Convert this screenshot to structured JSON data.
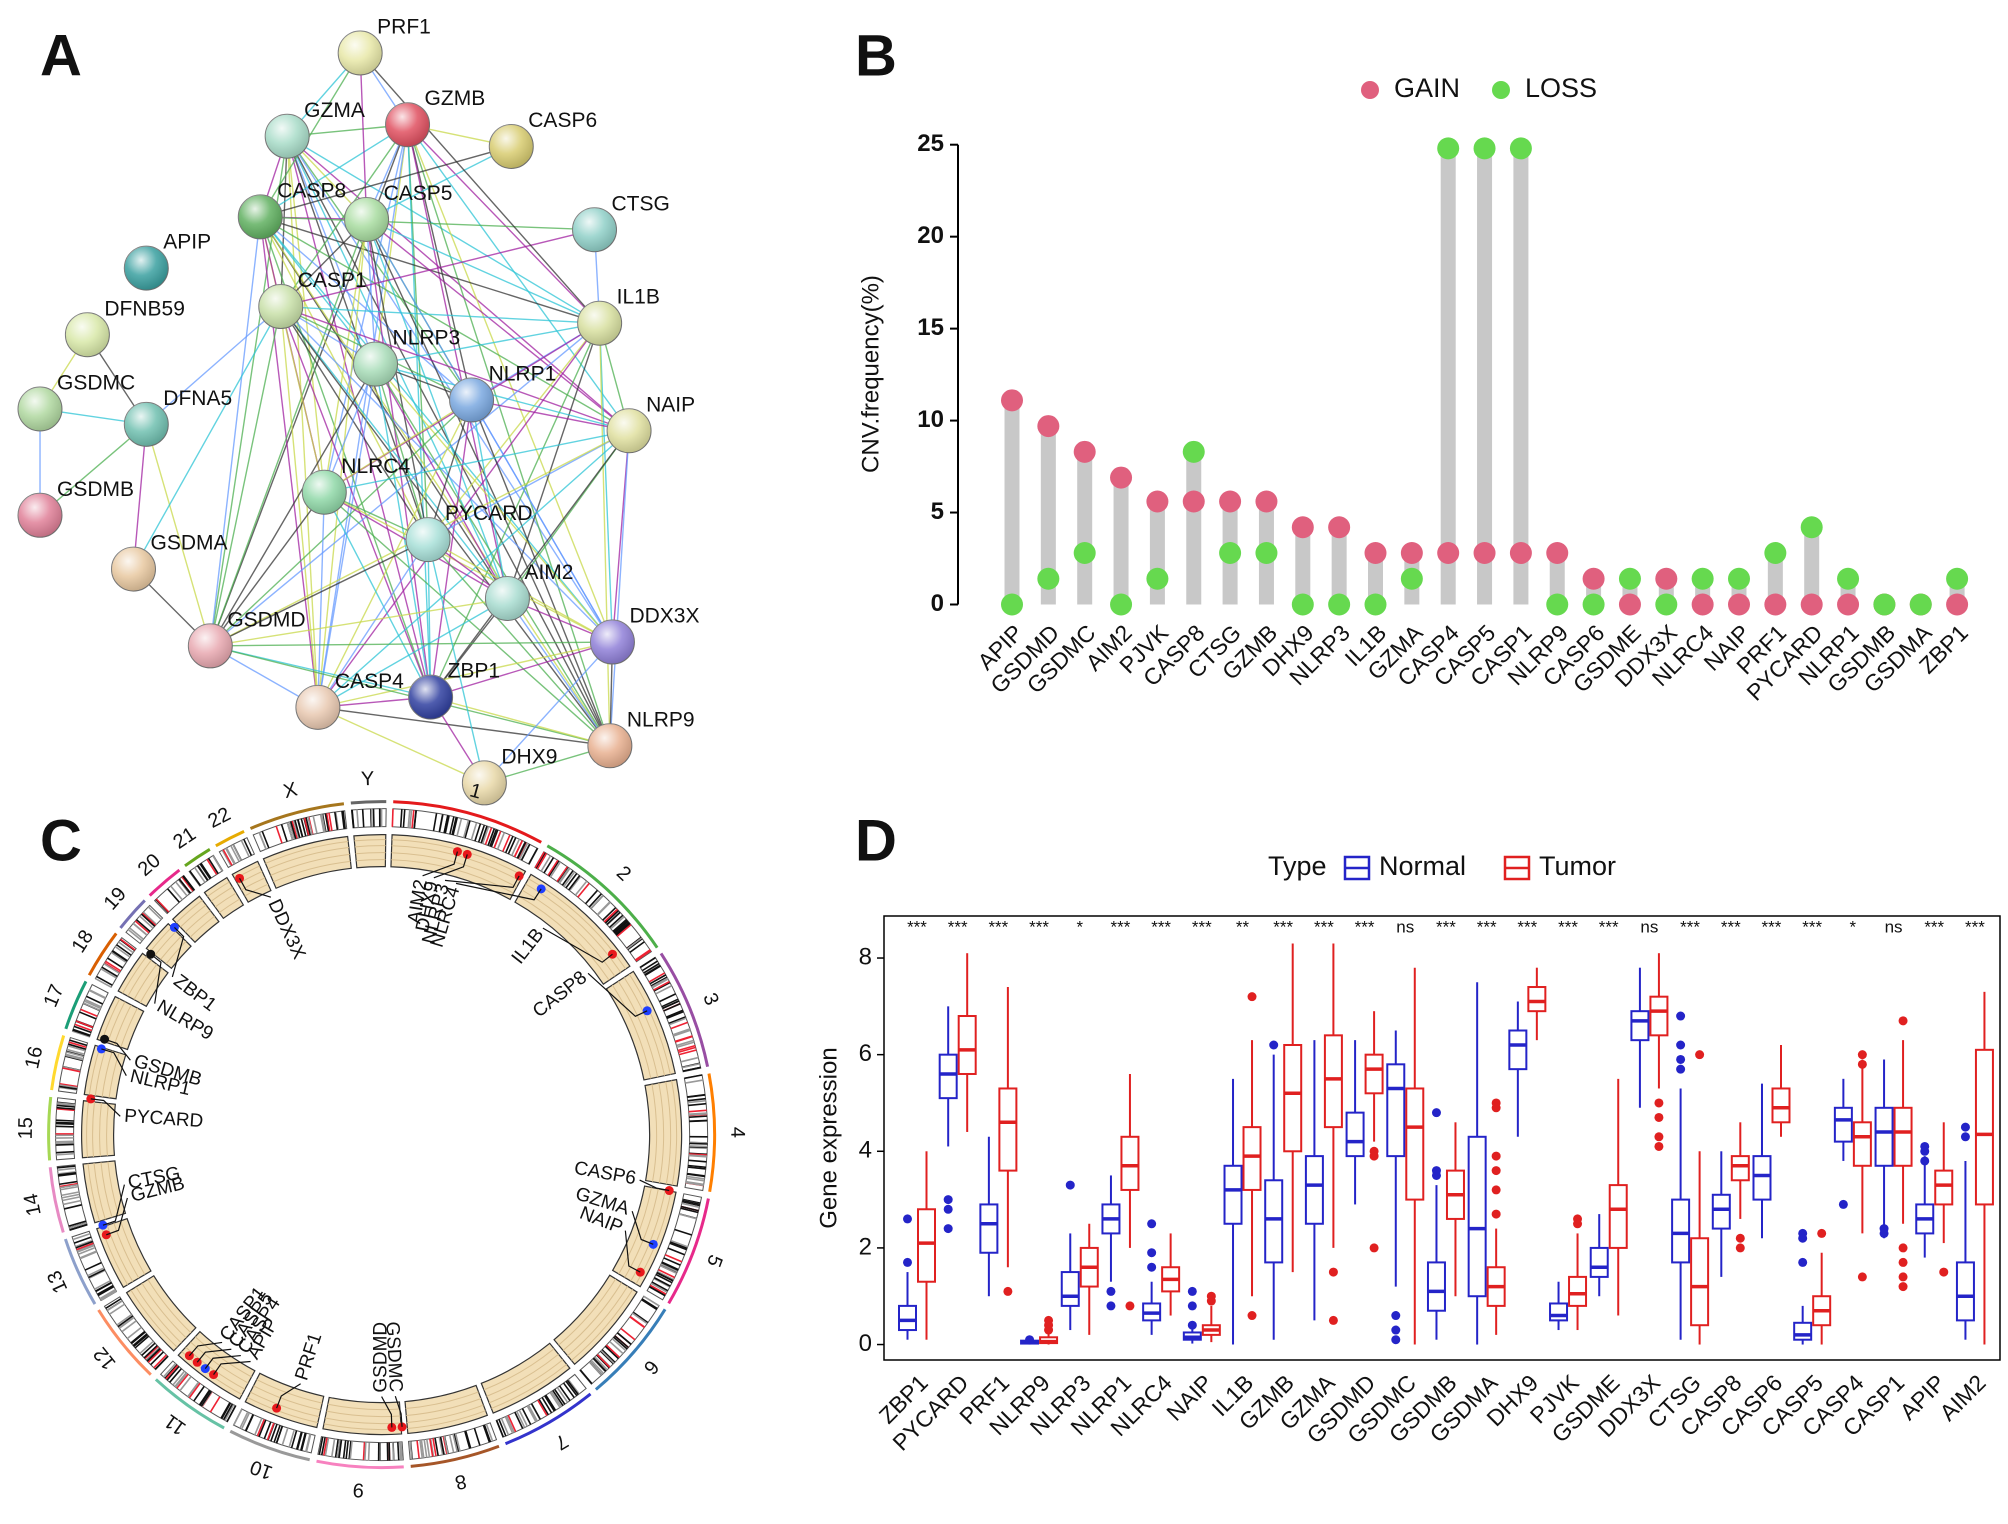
{
  "chart_data": [
    {
      "label": "A",
      "type": "network",
      "nodes": [
        {
          "label": "PRF1",
          "color": "#e8e8a8"
        },
        {
          "label": "GZMA",
          "color": "#a8dcc8"
        },
        {
          "label": "GZMB",
          "color": "#e05060"
        },
        {
          "label": "CASP6",
          "color": "#d8cc70"
        },
        {
          "label": "CASP8",
          "color": "#60b060"
        },
        {
          "label": "CASP5",
          "color": "#a8dca0"
        },
        {
          "label": "CTSG",
          "color": "#90d0c8"
        },
        {
          "label": "APIP",
          "color": "#3aa0a0"
        },
        {
          "label": "CASP1",
          "color": "#c8e0a8"
        },
        {
          "label": "IL1B",
          "color": "#d8e0a0"
        },
        {
          "label": "DFNB59",
          "color": "#d8e8a8"
        },
        {
          "label": "NLRP3",
          "color": "#a8dcb8"
        },
        {
          "label": "NLRP1",
          "color": "#7aa8e0"
        },
        {
          "label": "GSDMC",
          "color": "#b0d8a0"
        },
        {
          "label": "DFNA5",
          "color": "#70c0b0"
        },
        {
          "label": "NAIP",
          "color": "#e0e0a0"
        },
        {
          "label": "NLRC4",
          "color": "#90d8a8"
        },
        {
          "label": "GSDMB",
          "color": "#e08098"
        },
        {
          "label": "PYCARD",
          "color": "#a8e0d8"
        },
        {
          "label": "GSDMA",
          "color": "#e8c8a0"
        },
        {
          "label": "AIM2",
          "color": "#a8dcd0"
        },
        {
          "label": "DDX3X",
          "color": "#9080d8"
        },
        {
          "label": "GSDMD",
          "color": "#e8a8b0"
        },
        {
          "label": "ZBP1",
          "color": "#3040a0"
        },
        {
          "label": "CASP4",
          "color": "#e8c8b0"
        },
        {
          "label": "NLRP9",
          "color": "#e8b090"
        },
        {
          "label": "DHX9",
          "color": "#e8d8a8"
        }
      ]
    },
    {
      "label": "B",
      "type": "lollipop",
      "ylabel": "CNV.frequency(%)",
      "categories": [
        "APIP",
        "GSDMD",
        "GSDMC",
        "AIM2",
        "PJVK",
        "CASP8",
        "CTSG",
        "GZMB",
        "DHX9",
        "NLRP3",
        "IL1B",
        "GZMA",
        "CASP4",
        "CASP5",
        "CASP1",
        "NLRP9",
        "CASP6",
        "GSDME",
        "DDX3X",
        "NLRC4",
        "NAIP",
        "PRF1",
        "PYCARD",
        "NLRP1",
        "GSDMB",
        "GSDMA",
        "ZBP1"
      ],
      "series": [
        {
          "name": "GAIN",
          "color": "#e0607e",
          "values": [
            11.1,
            9.7,
            8.3,
            6.9,
            5.6,
            5.6,
            5.6,
            5.6,
            4.2,
            4.2,
            2.8,
            2.8,
            2.8,
            2.8,
            2.8,
            2.8,
            1.4,
            0,
            1.4,
            0,
            0,
            0,
            0,
            0,
            0,
            0,
            0
          ]
        },
        {
          "name": "LOSS",
          "color": "#66d94f",
          "values": [
            0,
            1.4,
            2.8,
            0,
            1.4,
            8.3,
            2.8,
            2.8,
            0,
            0,
            0,
            1.4,
            24.8,
            24.8,
            24.8,
            0,
            0,
            1.4,
            0,
            1.4,
            1.4,
            2.8,
            4.2,
            1.4,
            0,
            0,
            1.4
          ]
        }
      ],
      "stem_color": "#c8c8c8",
      "ylim": [
        0,
        25
      ],
      "yticks": [
        0,
        5,
        10,
        15,
        20,
        25
      ]
    },
    {
      "label": "C",
      "type": "circos",
      "chromosomes": [
        "1",
        "2",
        "3",
        "4",
        "5",
        "6",
        "7",
        "8",
        "9",
        "10",
        "11",
        "12",
        "13",
        "14",
        "15",
        "16",
        "17",
        "18",
        "19",
        "20",
        "21",
        "22",
        "X",
        "Y"
      ],
      "genes": [
        {
          "label": "AIM2",
          "color": "#e8181c"
        },
        {
          "label": "DHX9",
          "color": "#e8181c"
        },
        {
          "label": "NLRP3",
          "color": "#e8181c"
        },
        {
          "label": "NLRC4",
          "color": "#1f3fff"
        },
        {
          "label": "IL1B",
          "color": "#e8181c"
        },
        {
          "label": "CASP8",
          "color": "#1f3fff"
        },
        {
          "label": "CASP6",
          "color": "#e8181c"
        },
        {
          "label": "GZMA",
          "color": "#1f3fff"
        },
        {
          "label": "NAIP",
          "color": "#e8181c"
        },
        {
          "label": "GSDMC",
          "color": "#e8181c"
        },
        {
          "label": "GSDMD",
          "color": "#e8181c"
        },
        {
          "label": "PRF1",
          "color": "#e8181c"
        },
        {
          "label": "APIP",
          "color": "#e8181c"
        },
        {
          "label": "CASP4",
          "color": "#1f3fff"
        },
        {
          "label": "CASP5",
          "color": "#e8181c"
        },
        {
          "label": "CASP1",
          "color": "#e8181c"
        },
        {
          "label": "GZMB",
          "color": "#e8181c"
        },
        {
          "label": "CTSG",
          "color": "#1f3fff"
        },
        {
          "label": "PYCARD",
          "color": "#e8181c"
        },
        {
          "label": "NLRP1",
          "color": "#1f3fff"
        },
        {
          "label": "GSDMB",
          "color": "#111111"
        },
        {
          "label": "NLRP9",
          "color": "#111111"
        },
        {
          "label": "ZBP1",
          "color": "#1f3fff"
        },
        {
          "label": "DDX3X",
          "color": "#e8181c"
        }
      ]
    },
    {
      "label": "D",
      "type": "box",
      "ylabel": "Gene expression",
      "legend_title": "Type",
      "categories": [
        "ZBP1",
        "PYCARD",
        "PRF1",
        "NLRP9",
        "NLRP3",
        "NLRP1",
        "NLRC4",
        "NAIP",
        "IL1B",
        "GZMB",
        "GZMA",
        "GSDMD",
        "GSDMC",
        "GSDMB",
        "GSDMA",
        "DHX9",
        "PJVK",
        "GSDME",
        "DDX3X",
        "CTSG",
        "CASP8",
        "CASP6",
        "CASP5",
        "CASP4",
        "CASP1",
        "APIP",
        "AIM2"
      ],
      "significance": [
        "***",
        "***",
        "***",
        "***",
        "*",
        "***",
        "***",
        "***",
        "**",
        "***",
        "***",
        "***",
        "ns",
        "***",
        "***",
        "***",
        "***",
        "***",
        "ns",
        "***",
        "***",
        "***",
        "***",
        "*",
        "ns",
        "***",
        "***"
      ],
      "series": [
        {
          "name": "Normal",
          "color": "#2424c8",
          "boxes": [
            [
              0.1,
              0.3,
              0.5,
              0.8,
              1.5
            ],
            [
              4.1,
              5.1,
              5.6,
              6.0,
              7.0
            ],
            [
              1.0,
              1.9,
              2.5,
              2.9,
              4.3
            ],
            [
              0,
              0.02,
              0.05,
              0.08,
              0.15
            ],
            [
              0.3,
              0.8,
              1.0,
              1.5,
              2.3
            ],
            [
              1.3,
              2.3,
              2.6,
              2.9,
              3.5
            ],
            [
              0.2,
              0.5,
              0.65,
              0.85,
              1.3
            ],
            [
              0.02,
              0.1,
              0.15,
              0.25,
              0.45
            ],
            [
              0,
              2.5,
              3.2,
              3.7,
              5.5
            ],
            [
              0.1,
              1.7,
              2.6,
              3.4,
              6.0
            ],
            [
              0.5,
              2.5,
              3.3,
              3.9,
              6.3
            ],
            [
              2.9,
              3.9,
              4.2,
              4.8,
              6.3
            ],
            [
              1.2,
              3.9,
              5.3,
              5.8,
              6.5
            ],
            [
              0.1,
              0.7,
              1.1,
              1.7,
              3.3
            ],
            [
              0,
              1.0,
              2.4,
              4.3,
              7.5
            ],
            [
              4.3,
              5.7,
              6.2,
              6.5,
              7.1
            ],
            [
              0.3,
              0.5,
              0.6,
              0.85,
              1.3
            ],
            [
              1.0,
              1.4,
              1.6,
              2.0,
              2.7
            ],
            [
              4.9,
              6.3,
              6.7,
              6.9,
              7.8
            ],
            [
              0.1,
              1.7,
              2.3,
              3.0,
              5.3
            ],
            [
              1.4,
              2.4,
              2.8,
              3.1,
              4.0
            ],
            [
              2.2,
              3.0,
              3.5,
              3.9,
              5.4
            ],
            [
              0,
              0.1,
              0.2,
              0.45,
              0.8
            ],
            [
              3.8,
              4.2,
              4.65,
              4.9,
              5.5
            ],
            [
              2.2,
              3.7,
              4.4,
              4.9,
              5.9
            ],
            [
              1.8,
              2.3,
              2.6,
              2.9,
              3.9
            ],
            [
              0.1,
              0.5,
              1.0,
              1.7,
              3.8
            ]
          ],
          "outliers": [
            [
              1.7,
              2.6
            ],
            [
              3.0,
              2.8,
              2.4
            ],
            [],
            [
              0.1
            ],
            [
              3.3
            ],
            [
              1.1,
              0.8
            ],
            [
              1.6,
              1.9,
              2.5
            ],
            [
              0.8,
              1.1,
              0.4
            ],
            [],
            [
              6.2
            ],
            [],
            [],
            [
              0.6,
              0.3,
              0.1
            ],
            [
              3.6,
              3.5,
              4.8
            ],
            [],
            [],
            [],
            [],
            [],
            [
              5.7,
              5.9,
              6.2,
              6.8
            ],
            [],
            [],
            [
              1.7,
              2.3,
              2.2
            ],
            [
              2.9
            ],
            [
              2.4,
              2.3
            ],
            [
              4.1,
              4.0,
              3.8
            ],
            [
              4.5,
              4.3
            ]
          ]
        },
        {
          "name": "Tumor",
          "color": "#e02020",
          "boxes": [
            [
              0.1,
              1.3,
              2.1,
              2.8,
              4.0
            ],
            [
              4.4,
              5.6,
              6.1,
              6.8,
              8.1
            ],
            [
              1.6,
              3.6,
              4.6,
              5.3,
              7.4
            ],
            [
              0,
              0.03,
              0.06,
              0.15,
              0.3
            ],
            [
              0.2,
              1.2,
              1.6,
              2.0,
              2.5
            ],
            [
              2.0,
              3.2,
              3.7,
              4.3,
              5.6
            ],
            [
              0.6,
              1.1,
              1.35,
              1.6,
              2.3
            ],
            [
              0.05,
              0.2,
              0.3,
              0.4,
              0.8
            ],
            [
              1.0,
              3.2,
              3.9,
              4.5,
              6.3
            ],
            [
              1.5,
              4.0,
              5.2,
              6.2,
              8.3
            ],
            [
              2.0,
              4.5,
              5.5,
              6.4,
              8.3
            ],
            [
              4.2,
              5.2,
              5.7,
              6.0,
              6.9
            ],
            [
              0,
              3.0,
              4.5,
              5.3,
              7.8
            ],
            [
              1.0,
              2.6,
              3.1,
              3.6,
              4.6
            ],
            [
              0.2,
              0.8,
              1.2,
              1.6,
              2.4
            ],
            [
              6.3,
              6.9,
              7.1,
              7.4,
              7.8
            ],
            [
              0.3,
              0.8,
              1.05,
              1.4,
              2.3
            ],
            [
              0.6,
              2.0,
              2.8,
              3.3,
              5.5
            ],
            [
              5.3,
              6.4,
              6.9,
              7.2,
              8.1
            ],
            [
              0,
              0.4,
              1.2,
              2.2,
              4.0
            ],
            [
              2.6,
              3.4,
              3.7,
              3.9,
              4.6
            ],
            [
              4.3,
              4.6,
              4.9,
              5.3,
              6.2
            ],
            [
              0,
              0.4,
              0.7,
              1.0,
              1.9
            ],
            [
              2.3,
              3.7,
              4.3,
              4.6,
              5.9
            ],
            [
              2.5,
              3.7,
              4.4,
              4.9,
              6.3
            ],
            [
              2.1,
              2.9,
              3.3,
              3.6,
              4.6
            ],
            [
              0,
              2.9,
              4.35,
              6.1,
              7.3
            ]
          ],
          "outliers": [
            [],
            [],
            [
              1.1
            ],
            [
              0.4,
              0.5,
              0.3
            ],
            [],
            [
              0.8
            ],
            [],
            [
              0.9,
              1.0
            ],
            [
              7.2,
              0.6
            ],
            [],
            [
              1.5,
              0.5
            ],
            [
              4.0,
              3.9,
              2.0
            ],
            [],
            [],
            [
              2.7,
              3.2,
              3.6,
              3.9,
              4.9,
              5.0
            ],
            [],
            [
              2.6,
              2.5
            ],
            [],
            [
              5.0,
              4.7,
              4.3,
              4.1
            ],
            [
              6.0
            ],
            [
              2.2,
              2.0
            ],
            [],
            [
              2.3
            ],
            [
              6.0,
              5.8,
              1.4
            ],
            [
              6.7,
              2.0,
              1.7,
              1.4,
              1.2
            ],
            [
              1.5
            ],
            []
          ]
        }
      ],
      "ylim": [
        -0.32,
        8.87
      ],
      "yticks": [
        0,
        2,
        4,
        6,
        8
      ]
    }
  ]
}
